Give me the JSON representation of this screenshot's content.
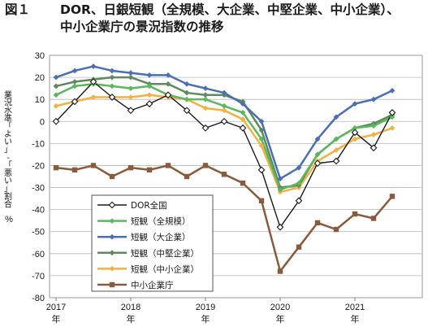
{
  "figure": {
    "number": "図１",
    "title_line1": "DOR、日銀短観（全規模、大企業、中堅企業、中小企業）、",
    "title_line2": "中小企業庁の景況指数の推移"
  },
  "chart_data": {
    "type": "line",
    "title": "DOR、日銀短観（全規模、大企業、中堅企業、中小企業）、中小企業庁の景況指数の推移",
    "ylabel": "業況水準「よい」-「悪い」割合",
    "yunit": "%",
    "ylim": [
      -80,
      30
    ],
    "yticks": [
      30,
      20,
      10,
      0,
      -10,
      -20,
      -30,
      -40,
      -50,
      -60,
      -70,
      -80
    ],
    "grid": "horizontal",
    "legend_position": "lower-left",
    "x": [
      "2017Q1",
      "2017Q2",
      "2017Q3",
      "2017Q4",
      "2018Q1",
      "2018Q2",
      "2018Q3",
      "2018Q4",
      "2019Q1",
      "2019Q2",
      "2019Q3",
      "2019Q4",
      "2020Q1",
      "2020Q2",
      "2020Q3",
      "2020Q4",
      "2021Q1",
      "2021Q2",
      "2021Q3",
      "2021Q4"
    ],
    "xticks": [
      {
        "label": "2017",
        "unit": "年",
        "x_index": 0
      },
      {
        "label": "2018",
        "unit": "年",
        "x_index": 4
      },
      {
        "label": "2019",
        "unit": "年",
        "x_index": 8
      },
      {
        "label": "2020",
        "unit": "年",
        "x_index": 12
      },
      {
        "label": "2021",
        "unit": "年",
        "x_index": 16
      }
    ],
    "series": [
      {
        "name": "DOR全国",
        "color": "#1a1a1a",
        "marker": "diamond-open",
        "line_width": 1.4,
        "values": [
          0,
          9,
          18,
          11,
          5,
          8,
          12,
          5,
          -3,
          0,
          -3,
          -22,
          -48,
          -36,
          -19,
          -18,
          -5,
          -12,
          4,
          null
        ]
      },
      {
        "name": "短観（全規模）",
        "color": "#5cb85c",
        "marker": "diamond",
        "line_width": 2.5,
        "values": [
          12,
          16,
          17,
          16,
          15,
          16,
          12,
          10,
          10,
          7,
          4,
          -8,
          -31,
          -28,
          -15,
          -8,
          -3,
          -2,
          2,
          null
        ]
      },
      {
        "name": "短観（大企業）",
        "color": "#4a6fb5",
        "marker": "diamond",
        "line_width": 2.5,
        "values": [
          20,
          23,
          25,
          23,
          22,
          21,
          21,
          17,
          15,
          13,
          8,
          0,
          -26,
          -21,
          -8,
          2,
          8,
          10,
          14,
          null
        ]
      },
      {
        "name": "短観（中堅企業）",
        "color": "#5e8a5e",
        "marker": "diamond",
        "line_width": 2.5,
        "values": [
          16,
          18,
          19,
          20,
          20,
          17,
          17,
          13,
          12,
          12,
          9,
          -4,
          -30,
          -29,
          -15,
          -8,
          -3,
          -1,
          3,
          null
        ]
      },
      {
        "name": "短観（中小企業）",
        "color": "#f5b042",
        "marker": "diamond",
        "line_width": 2.5,
        "values": [
          7,
          9,
          11,
          11,
          11,
          12,
          11,
          10,
          6,
          5,
          1,
          -11,
          -32,
          -30,
          -18,
          -13,
          -8,
          -6,
          -3,
          null
        ]
      },
      {
        "name": "中小企業庁",
        "color": "#8b5a3c",
        "marker": "square",
        "line_width": 2.5,
        "values": [
          -21,
          -22,
          -20,
          -25,
          -21,
          -22,
          -20,
          -25,
          -20,
          -24,
          -28,
          -36,
          -68,
          -57,
          -46,
          -49,
          -42,
          -44,
          -34,
          null
        ]
      }
    ]
  }
}
